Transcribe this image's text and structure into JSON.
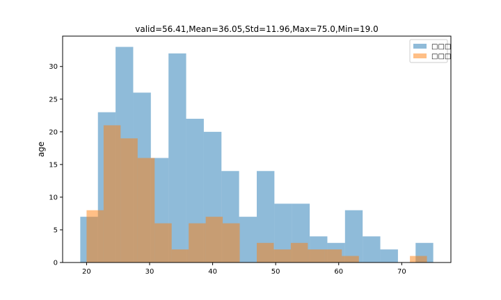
{
  "chart_data": {
    "type": "bar",
    "title": "valid=56.41,Mean=36.05,Std=11.96,Max=75.0,Min=19.0",
    "xlabel": "",
    "ylabel": "age",
    "xlim": [
      16.2,
      77.8
    ],
    "ylim": [
      0,
      34.65
    ],
    "x_ticks": [
      20,
      30,
      40,
      50,
      60,
      70
    ],
    "y_ticks": [
      0,
      5,
      10,
      15,
      20,
      25,
      30
    ],
    "grid": false,
    "legend_position": "top-right",
    "series": [
      {
        "name": "□□□",
        "color": "#1f77b4",
        "opacity": 0.5,
        "bins": [
          {
            "x0": 19.0,
            "x1": 21.8,
            "value": 7
          },
          {
            "x0": 21.8,
            "x1": 24.6,
            "value": 23
          },
          {
            "x0": 24.6,
            "x1": 27.4,
            "value": 33
          },
          {
            "x0": 27.4,
            "x1": 30.2,
            "value": 26
          },
          {
            "x0": 30.2,
            "x1": 33.0,
            "value": 16
          },
          {
            "x0": 33.0,
            "x1": 35.8,
            "value": 32
          },
          {
            "x0": 35.8,
            "x1": 38.6,
            "value": 22
          },
          {
            "x0": 38.6,
            "x1": 41.4,
            "value": 20
          },
          {
            "x0": 41.4,
            "x1": 44.2,
            "value": 14
          },
          {
            "x0": 44.2,
            "x1": 47.0,
            "value": 7
          },
          {
            "x0": 47.0,
            "x1": 49.8,
            "value": 14
          },
          {
            "x0": 49.8,
            "x1": 52.6,
            "value": 9
          },
          {
            "x0": 52.6,
            "x1": 55.4,
            "value": 9
          },
          {
            "x0": 55.4,
            "x1": 58.2,
            "value": 4
          },
          {
            "x0": 58.2,
            "x1": 61.0,
            "value": 3
          },
          {
            "x0": 61.0,
            "x1": 63.8,
            "value": 8
          },
          {
            "x0": 63.8,
            "x1": 66.6,
            "value": 4
          },
          {
            "x0": 66.6,
            "x1": 69.4,
            "value": 2
          },
          {
            "x0": 69.4,
            "x1": 72.2,
            "value": 0
          },
          {
            "x0": 72.2,
            "x1": 75.0,
            "value": 3
          }
        ]
      },
      {
        "name": "□□□",
        "color": "#ff7f0e",
        "opacity": 0.5,
        "bins": [
          {
            "x0": 20.0,
            "x1": 22.7,
            "value": 8
          },
          {
            "x0": 22.7,
            "x1": 25.4,
            "value": 21
          },
          {
            "x0": 25.4,
            "x1": 28.1,
            "value": 19
          },
          {
            "x0": 28.1,
            "x1": 30.8,
            "value": 16
          },
          {
            "x0": 30.8,
            "x1": 33.5,
            "value": 6
          },
          {
            "x0": 33.5,
            "x1": 36.2,
            "value": 2
          },
          {
            "x0": 36.2,
            "x1": 38.9,
            "value": 6
          },
          {
            "x0": 38.9,
            "x1": 41.6,
            "value": 7
          },
          {
            "x0": 41.6,
            "x1": 44.3,
            "value": 6
          },
          {
            "x0": 44.3,
            "x1": 47.0,
            "value": 0
          },
          {
            "x0": 47.0,
            "x1": 49.7,
            "value": 3
          },
          {
            "x0": 49.7,
            "x1": 52.4,
            "value": 2
          },
          {
            "x0": 52.4,
            "x1": 55.1,
            "value": 3
          },
          {
            "x0": 55.1,
            "x1": 57.8,
            "value": 2
          },
          {
            "x0": 57.8,
            "x1": 60.5,
            "value": 2
          },
          {
            "x0": 60.5,
            "x1": 63.2,
            "value": 1
          },
          {
            "x0": 63.2,
            "x1": 65.9,
            "value": 0
          },
          {
            "x0": 65.9,
            "x1": 68.6,
            "value": 0
          },
          {
            "x0": 68.6,
            "x1": 71.3,
            "value": 0
          },
          {
            "x0": 71.3,
            "x1": 74.0,
            "value": 1
          }
        ]
      }
    ]
  }
}
